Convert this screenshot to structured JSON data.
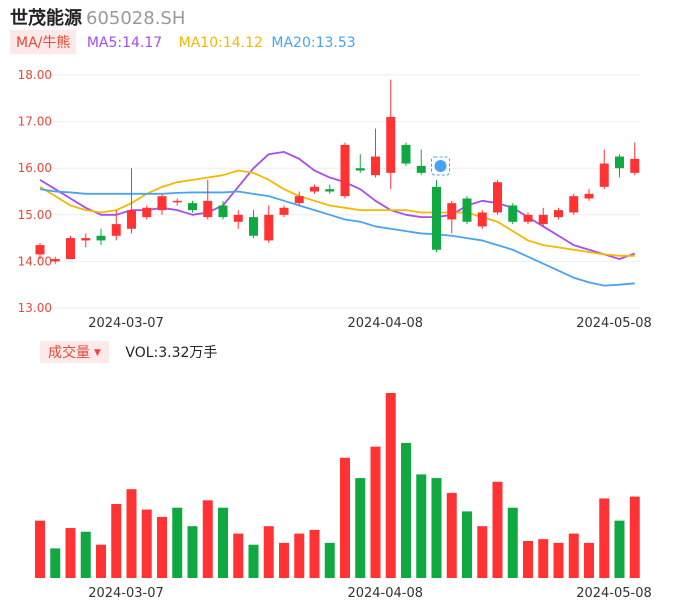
{
  "header": {
    "name": "世茂能源",
    "code": "605028.SH"
  },
  "indicators": {
    "selector": "MA/牛熊",
    "ma5": "MA5:14.17",
    "ma10": "MA10:14.12",
    "ma20": "MA20:13.53"
  },
  "volume_panel": {
    "selector": "成交量",
    "value": "VOL:3.32万手"
  },
  "colors": {
    "up": "#ff3333",
    "down": "#10a840",
    "ma5": "#a64cf0",
    "ma10": "#f5b800",
    "ma20": "#4aa3f0"
  },
  "chart_data": [
    {
      "type": "candlestick",
      "ylim": [
        13.0,
        18.0
      ],
      "y_ticks": [
        "18.00",
        "17.00",
        "16.00",
        "15.00",
        "14.00",
        "13.00"
      ],
      "x_ticks": [
        {
          "index": 4,
          "label": "2024-03-07"
        },
        {
          "index": 21,
          "label": "2024-04-08"
        },
        {
          "index": 36,
          "label": "2024-05-08"
        }
      ],
      "candles": [
        {
          "o": 14.15,
          "c": 14.35,
          "h": 14.4,
          "l": 14.05
        },
        {
          "o": 14.0,
          "c": 14.05,
          "h": 14.1,
          "l": 13.95
        },
        {
          "o": 14.05,
          "c": 14.5,
          "h": 14.55,
          "l": 14.05
        },
        {
          "o": 14.45,
          "c": 14.5,
          "h": 14.6,
          "l": 14.3
        },
        {
          "o": 14.55,
          "c": 14.45,
          "h": 14.7,
          "l": 14.35
        },
        {
          "o": 14.55,
          "c": 14.8,
          "h": 15.1,
          "l": 14.45
        },
        {
          "o": 14.7,
          "c": 15.1,
          "h": 16.0,
          "l": 14.6
        },
        {
          "o": 14.95,
          "c": 15.15,
          "h": 15.2,
          "l": 14.9
        },
        {
          "o": 15.1,
          "c": 15.4,
          "h": 15.45,
          "l": 15.0
        },
        {
          "o": 15.3,
          "c": 15.3,
          "h": 15.35,
          "l": 15.2
        },
        {
          "o": 15.25,
          "c": 15.1,
          "h": 15.3,
          "l": 15.05
        },
        {
          "o": 14.95,
          "c": 15.3,
          "h": 15.75,
          "l": 14.9
        },
        {
          "o": 15.2,
          "c": 14.95,
          "h": 15.3,
          "l": 14.9
        },
        {
          "o": 14.85,
          "c": 15.0,
          "h": 15.1,
          "l": 14.7
        },
        {
          "o": 14.95,
          "c": 14.55,
          "h": 15.1,
          "l": 14.5
        },
        {
          "o": 14.45,
          "c": 15.0,
          "h": 15.2,
          "l": 14.4
        },
        {
          "o": 15.0,
          "c": 15.15,
          "h": 15.2,
          "l": 14.95
        },
        {
          "o": 15.25,
          "c": 15.4,
          "h": 15.5,
          "l": 15.2
        },
        {
          "o": 15.5,
          "c": 15.6,
          "h": 15.65,
          "l": 15.45
        },
        {
          "o": 15.55,
          "c": 15.5,
          "h": 15.65,
          "l": 15.45
        },
        {
          "o": 15.4,
          "c": 16.5,
          "h": 16.55,
          "l": 15.35
        },
        {
          "o": 16.0,
          "c": 15.95,
          "h": 16.3,
          "l": 15.9
        },
        {
          "o": 15.85,
          "c": 16.25,
          "h": 16.85,
          "l": 15.8
        },
        {
          "o": 15.9,
          "c": 17.1,
          "h": 17.9,
          "l": 15.55
        },
        {
          "o": 16.5,
          "c": 16.1,
          "h": 16.55,
          "l": 16.05
        },
        {
          "o": 16.05,
          "c": 15.9,
          "h": 16.4,
          "l": 15.85
        },
        {
          "o": 15.6,
          "c": 14.25,
          "h": 15.75,
          "l": 14.2
        },
        {
          "o": 14.9,
          "c": 15.25,
          "h": 15.3,
          "l": 14.6
        },
        {
          "o": 15.35,
          "c": 14.85,
          "h": 15.4,
          "l": 14.8
        },
        {
          "o": 14.75,
          "c": 15.05,
          "h": 15.1,
          "l": 14.7
        },
        {
          "o": 15.05,
          "c": 15.7,
          "h": 15.75,
          "l": 15.0
        },
        {
          "o": 15.2,
          "c": 14.85,
          "h": 15.25,
          "l": 14.8
        },
        {
          "o": 14.85,
          "c": 15.0,
          "h": 15.05,
          "l": 14.8
        },
        {
          "o": 14.8,
          "c": 15.0,
          "h": 15.15,
          "l": 14.75
        },
        {
          "o": 14.95,
          "c": 15.1,
          "h": 15.15,
          "l": 14.9
        },
        {
          "o": 15.05,
          "c": 15.4,
          "h": 15.45,
          "l": 15.0
        },
        {
          "o": 15.35,
          "c": 15.45,
          "h": 15.55,
          "l": 15.3
        },
        {
          "o": 15.6,
          "c": 16.1,
          "h": 16.4,
          "l": 15.55
        },
        {
          "o": 16.25,
          "c": 16.0,
          "h": 16.3,
          "l": 15.8
        },
        {
          "o": 15.9,
          "c": 16.2,
          "h": 16.55,
          "l": 15.85
        }
      ],
      "series": [
        {
          "name": "MA5",
          "values": [
            15.75,
            15.55,
            15.35,
            15.15,
            15.0,
            15.0,
            15.1,
            15.1,
            15.15,
            15.1,
            15.0,
            15.05,
            15.2,
            15.6,
            16.0,
            16.3,
            16.35,
            16.2,
            15.95,
            15.8,
            15.7,
            15.55,
            15.3,
            15.1,
            15.0,
            14.95,
            14.95,
            15.0,
            15.2,
            15.3,
            15.25,
            15.15,
            14.95,
            14.75,
            14.55,
            14.35,
            14.25,
            14.15,
            14.05,
            14.17
          ]
        },
        {
          "name": "MA10",
          "values": [
            15.6,
            15.4,
            15.2,
            15.1,
            15.05,
            15.1,
            15.25,
            15.45,
            15.6,
            15.7,
            15.75,
            15.8,
            15.85,
            15.95,
            15.9,
            15.75,
            15.55,
            15.4,
            15.3,
            15.2,
            15.15,
            15.1,
            15.1,
            15.1,
            15.1,
            15.05,
            15.05,
            15.05,
            15.05,
            14.95,
            14.85,
            14.65,
            14.45,
            14.35,
            14.3,
            14.25,
            14.2,
            14.15,
            14.12,
            14.12
          ]
        },
        {
          "name": "MA20",
          "values": [
            15.55,
            15.5,
            15.48,
            15.45,
            15.45,
            15.45,
            15.45,
            15.45,
            15.45,
            15.47,
            15.48,
            15.48,
            15.48,
            15.5,
            15.45,
            15.4,
            15.3,
            15.2,
            15.1,
            15.0,
            14.9,
            14.85,
            14.75,
            14.7,
            14.65,
            14.6,
            14.58,
            14.55,
            14.5,
            14.45,
            14.35,
            14.25,
            14.1,
            13.95,
            13.8,
            13.65,
            13.55,
            13.48,
            13.5,
            13.53
          ]
        }
      ]
    },
    {
      "type": "bar",
      "ylabel": "",
      "values": [
        31,
        16,
        27,
        25,
        18,
        40,
        48,
        37,
        33,
        38,
        28,
        42,
        38,
        24,
        18,
        28,
        19,
        24,
        26,
        19,
        65,
        54,
        71,
        100,
        73,
        56,
        54,
        46,
        36,
        28,
        52,
        38,
        20,
        21,
        19,
        24,
        19,
        43,
        31,
        44
      ],
      "up": [
        true,
        false,
        true,
        false,
        true,
        true,
        true,
        true,
        true,
        false,
        false,
        true,
        false,
        true,
        false,
        true,
        true,
        true,
        true,
        false,
        true,
        false,
        true,
        true,
        false,
        false,
        false,
        true,
        false,
        true,
        true,
        false,
        true,
        true,
        true,
        true,
        true,
        true,
        false,
        true
      ]
    }
  ]
}
